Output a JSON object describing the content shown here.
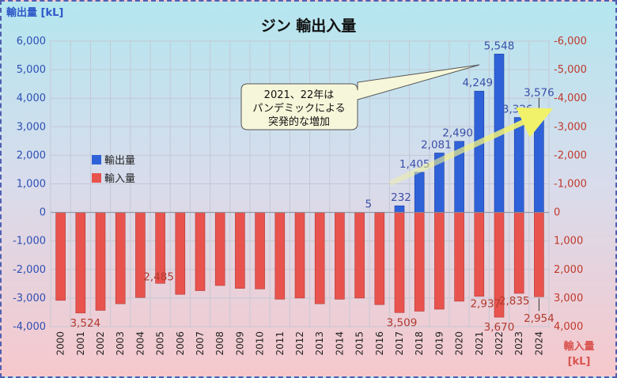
{
  "chart_data": {
    "type": "bar",
    "title": "ジン 輸出入量",
    "left_axis_title": "輸出量 [kL]",
    "right_axis_title_line1": "輸入量",
    "right_axis_title_line2": "[kL]",
    "ylim": [
      -4000,
      6000
    ],
    "y_ticks": [
      6000,
      5000,
      4000,
      3000,
      2000,
      1000,
      0,
      -1000,
      -2000,
      -3000,
      -4000
    ],
    "y_tick_labels_left": [
      "6,000",
      "5,000",
      "4,000",
      "3,000",
      "2,000",
      "1,000",
      "0",
      "-1,000",
      "-2,000",
      "-3,000",
      "-4,000"
    ],
    "y_tick_labels_right": [
      "-6,000",
      "-5,000",
      "-4,000",
      "-3,000",
      "-2,000",
      "-1,000",
      "0",
      "1,000",
      "2,000",
      "3,000",
      "4,000"
    ],
    "categories": [
      "2000",
      "2001",
      "2002",
      "2003",
      "2004",
      "2005",
      "2006",
      "2007",
      "2008",
      "2009",
      "2010",
      "2011",
      "2012",
      "2013",
      "2014",
      "2015",
      "2016",
      "2017",
      "2018",
      "2019",
      "2020",
      "2021",
      "2022",
      "2023",
      "2024"
    ],
    "series": [
      {
        "name": "輸出量",
        "color": "#2f62d9",
        "values": [
          0,
          0,
          0,
          0,
          0,
          0,
          0,
          0,
          0,
          0,
          0,
          0,
          0,
          0,
          0,
          0,
          5,
          232,
          1405,
          2081,
          2490,
          4249,
          5548,
          3326,
          3576
        ]
      },
      {
        "name": "輸入量",
        "color": "#e9534e",
        "values": [
          3080,
          3524,
          3430,
          3200,
          2980,
          2485,
          2870,
          2740,
          2560,
          2660,
          2680,
          3040,
          3000,
          3200,
          3040,
          3000,
          3230,
          3509,
          3460,
          3390,
          3110,
          2937,
          3670,
          2835,
          2954
        ]
      }
    ],
    "export_labels": [
      {
        "index": 16,
        "text": "5"
      },
      {
        "index": 17,
        "text": "232"
      },
      {
        "index": 18,
        "text": "1,405"
      },
      {
        "index": 19,
        "text": "2,081"
      },
      {
        "index": 20,
        "text": "2,490"
      },
      {
        "index": 21,
        "text": "4,249"
      },
      {
        "index": 22,
        "text": "5,548"
      },
      {
        "index": 23,
        "text": "3,326"
      },
      {
        "index": 24,
        "text": "3,576"
      }
    ],
    "import_labels": [
      {
        "index": 1,
        "text": "3,524"
      },
      {
        "index": 5,
        "text": "2,485"
      },
      {
        "index": 17,
        "text": "3,509"
      },
      {
        "index": 21,
        "text": "2,937"
      },
      {
        "index": 22,
        "text": "3,670"
      },
      {
        "index": 23,
        "text": "2,835"
      },
      {
        "index": 24,
        "text": "2,954"
      }
    ],
    "legend_position": "left",
    "annotation": [
      "2021、22年は",
      "パンデミックによる",
      "突発的な増加"
    ],
    "grid": true
  }
}
